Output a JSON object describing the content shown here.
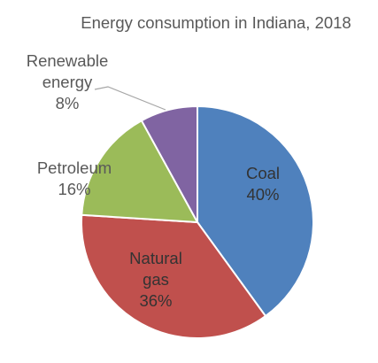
{
  "chart_data": {
    "type": "pie",
    "title": "Energy consumption in Indiana, 2018",
    "slices": [
      {
        "label": "Coal",
        "value": 40,
        "value_label": "40%",
        "color": "#4F81BD"
      },
      {
        "label": "Natural gas",
        "value": 36,
        "value_label": "36%",
        "color": "#C0504D"
      },
      {
        "label": "Petroleum",
        "value": 16,
        "value_label": "16%",
        "color": "#9BBB59"
      },
      {
        "label": "Renewable energy",
        "value": 8,
        "value_label": "8%",
        "color": "#8064A2"
      }
    ],
    "start_angle": "12 o'clock",
    "direction": "clockwise",
    "legend": "none"
  }
}
